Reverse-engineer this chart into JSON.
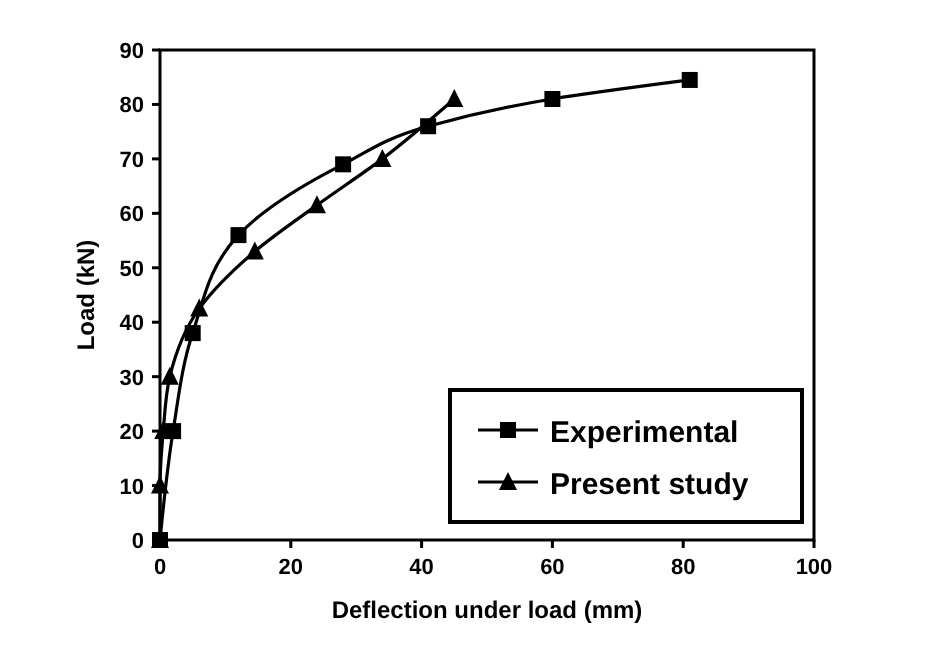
{
  "chart_data": {
    "type": "line",
    "xlabel": "Deflection under load (mm)",
    "ylabel": "Load (kN)",
    "series": [
      {
        "name": "Experimental",
        "color": "#000000",
        "marker": "square",
        "x": [
          0,
          2,
          5,
          12,
          28,
          41,
          60,
          81
        ],
        "values": [
          0,
          20,
          38,
          56,
          69,
          76,
          81,
          84.5
        ]
      },
      {
        "name": "Present study",
        "color": "#000000",
        "marker": "triangle",
        "x": [
          0,
          0,
          0.5,
          1.5,
          6,
          14.5,
          24,
          34,
          45
        ],
        "values": [
          0,
          10,
          20,
          30,
          42.5,
          53,
          61.5,
          70,
          81
        ]
      }
    ],
    "xlim": [
      0,
      100
    ],
    "xticks": [
      0,
      20,
      40,
      60,
      80,
      100
    ],
    "ylim": [
      0,
      90
    ],
    "yticks": [
      0,
      10,
      20,
      30,
      40,
      50,
      60,
      70,
      80,
      90
    ],
    "grid": false,
    "legend": "bottom right",
    "line_style": "solid"
  }
}
